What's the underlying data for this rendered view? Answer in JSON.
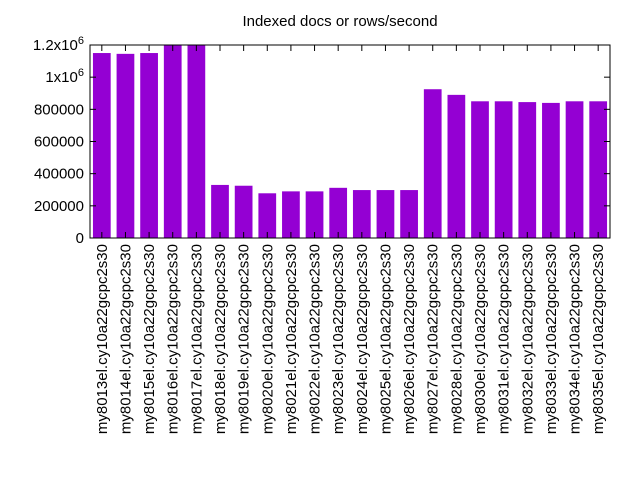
{
  "chart_data": {
    "type": "bar",
    "title": "Indexed docs or rows/second",
    "xlabel": "",
    "ylabel": "",
    "ylim": [
      0,
      1200000
    ],
    "yticks": [
      {
        "value": 0,
        "label": "0"
      },
      {
        "value": 200000,
        "label": "200000"
      },
      {
        "value": 400000,
        "label": "400000"
      },
      {
        "value": 600000,
        "label": "600000"
      },
      {
        "value": 800000,
        "label": "800000"
      },
      {
        "value": 1000000,
        "label": "1x10",
        "exp": "6"
      },
      {
        "value": 1200000,
        "label": "1.2x10",
        "exp": "6"
      }
    ],
    "bar_color": "#9400d3",
    "grid": false,
    "categories": [
      "my8013el.cy10a22gcpc2s30",
      "my8014el.cy10a22gcpc2s30",
      "my8015el.cy10a22gcpc2s30",
      "my8016el.cy10a22gcpc2s30",
      "my8017el.cy10a22gcpc2s30",
      "my8018el.cy10a22gcpc2s30",
      "my8019el.cy10a22gcpc2s30",
      "my8020el.cy10a22gcpc2s30",
      "my8021el.cy10a22gcpc2s30",
      "my8022el.cy10a22gcpc2s30",
      "my8023el.cy10a22gcpc2s30",
      "my8024el.cy10a22gcpc2s30",
      "my8025el.cy10a22gcpc2s30",
      "my8026el.cy10a22gcpc2s30",
      "my8027el.cy10a22gcpc2s30",
      "my8028el.cy10a22gcpc2s30",
      "my8030el.cy10a22gcpc2s30",
      "my8031el.cy10a22gcpc2s30",
      "my8032el.cy10a22gcpc2s30",
      "my8033el.cy10a22gcpc2s30",
      "my8034el.cy10a22gcpc2s30",
      "my8035el.cy10a22gcpc2s30"
    ],
    "values": [
      1150000,
      1145000,
      1150000,
      1200000,
      1200000,
      330000,
      325000,
      278000,
      290000,
      290000,
      312000,
      298000,
      298000,
      298000,
      925000,
      890000,
      850000,
      850000,
      845000,
      840000,
      850000,
      850000
    ]
  }
}
